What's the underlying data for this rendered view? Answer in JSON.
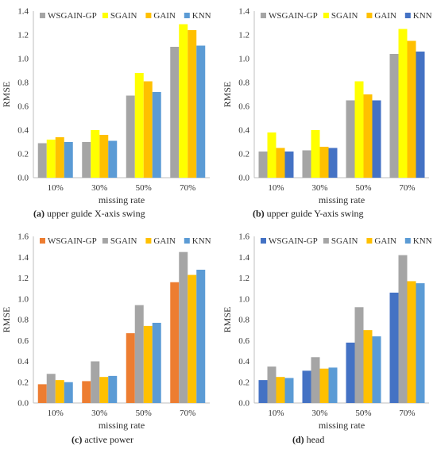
{
  "chart_data": [
    {
      "type": "bar",
      "caption_letter": "(a)",
      "caption_text": "upper guide X-axis swing",
      "xlabel": "missing rate",
      "ylabel": "RMSE",
      "ylim": [
        0,
        1.4
      ],
      "yticks": [
        "0.0",
        "0.2",
        "0.4",
        "0.6",
        "0.8",
        "1.0",
        "1.2",
        "1.4"
      ],
      "categories": [
        "10%",
        "30%",
        "50%",
        "70%"
      ],
      "legend_position": "top-left",
      "series": [
        {
          "name": "WSGAIN-GP",
          "color": "#a5a5a5",
          "values": [
            0.29,
            0.3,
            0.69,
            1.1
          ]
        },
        {
          "name": "SGAIN",
          "color": "#ffff00",
          "values": [
            0.32,
            0.4,
            0.88,
            1.29
          ]
        },
        {
          "name": "GAIN",
          "color": "#ffc000",
          "values": [
            0.34,
            0.36,
            0.81,
            1.24
          ]
        },
        {
          "name": "KNN",
          "color": "#5b9bd5",
          "values": [
            0.3,
            0.31,
            0.72,
            1.11
          ]
        }
      ]
    },
    {
      "type": "bar",
      "caption_letter": "(b)",
      "caption_text": "upper guide Y-axis swing",
      "xlabel": "missing rate",
      "ylabel": "RMSE",
      "ylim": [
        0,
        1.4
      ],
      "yticks": [
        "0.0",
        "0.2",
        "0.4",
        "0.6",
        "0.8",
        "1.0",
        "1.2",
        "1.4"
      ],
      "categories": [
        "10%",
        "30%",
        "50%",
        "70%"
      ],
      "legend_position": "top-left",
      "series": [
        {
          "name": "WSGAIN-GP",
          "color": "#a5a5a5",
          "values": [
            0.22,
            0.23,
            0.65,
            1.04
          ]
        },
        {
          "name": "SGAIN",
          "color": "#ffff00",
          "values": [
            0.38,
            0.4,
            0.81,
            1.25
          ]
        },
        {
          "name": "GAIN",
          "color": "#ffc000",
          "values": [
            0.25,
            0.26,
            0.7,
            1.15
          ]
        },
        {
          "name": "KNN",
          "color": "#4472c4",
          "values": [
            0.22,
            0.25,
            0.65,
            1.06
          ]
        }
      ]
    },
    {
      "type": "bar",
      "caption_letter": "(c)",
      "caption_text": "active power",
      "xlabel": "missing rate",
      "ylabel": "RMSE",
      "ylim": [
        0,
        1.6
      ],
      "yticks": [
        "0.0",
        "0.2",
        "0.4",
        "0.6",
        "0.8",
        "1.0",
        "1.2",
        "1.4",
        "1.6"
      ],
      "categories": [
        "10%",
        "30%",
        "50%",
        "70%"
      ],
      "legend_position": "top-left",
      "series": [
        {
          "name": "WSGAIN-GP",
          "color": "#ed7d31",
          "values": [
            0.18,
            0.21,
            0.67,
            1.16
          ]
        },
        {
          "name": "SGAIN",
          "color": "#a5a5a5",
          "values": [
            0.28,
            0.4,
            0.94,
            1.45
          ]
        },
        {
          "name": "GAIN",
          "color": "#ffc000",
          "values": [
            0.22,
            0.25,
            0.74,
            1.23
          ]
        },
        {
          "name": "KNN",
          "color": "#5b9bd5",
          "values": [
            0.2,
            0.26,
            0.77,
            1.28
          ]
        }
      ]
    },
    {
      "type": "bar",
      "caption_letter": "(d)",
      "caption_text": "head",
      "xlabel": "missing rate",
      "ylabel": "RMSE",
      "ylim": [
        0,
        1.6
      ],
      "yticks": [
        "0.0",
        "0.2",
        "0.4",
        "0.6",
        "0.8",
        "1.0",
        "1.2",
        "1.4",
        "1.6"
      ],
      "categories": [
        "10%",
        "30%",
        "50%",
        "70%"
      ],
      "legend_position": "top-left",
      "series": [
        {
          "name": "WSGAIN-GP",
          "color": "#4472c4",
          "values": [
            0.22,
            0.31,
            0.58,
            1.06
          ]
        },
        {
          "name": "SGAIN",
          "color": "#a5a5a5",
          "values": [
            0.35,
            0.44,
            0.92,
            1.42
          ]
        },
        {
          "name": "GAIN",
          "color": "#ffc000",
          "values": [
            0.25,
            0.33,
            0.7,
            1.17
          ]
        },
        {
          "name": "KNN",
          "color": "#5b9bd5",
          "values": [
            0.24,
            0.34,
            0.64,
            1.15
          ]
        }
      ]
    }
  ]
}
